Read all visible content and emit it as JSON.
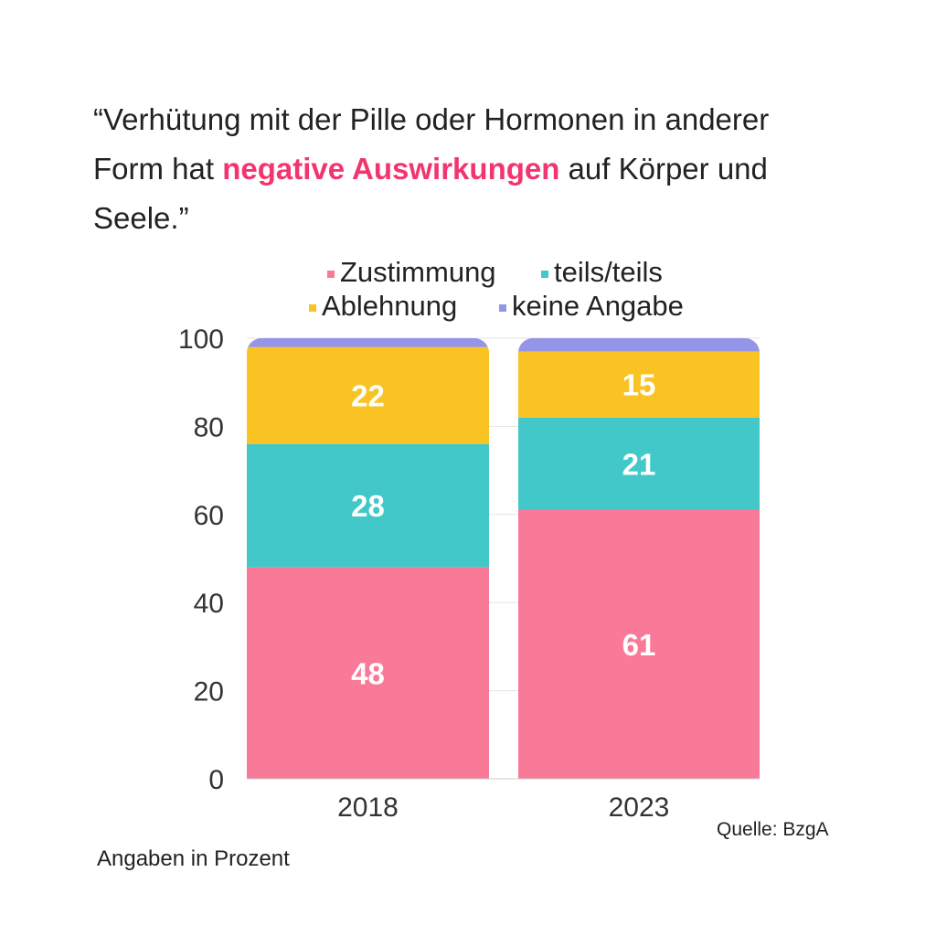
{
  "title": {
    "before": "“Verhütung mit der Pille oder Hormonen in anderer Form hat ",
    "highlight": "negative Auswirkungen",
    "after": " auf Körper und Seele.”",
    "highlight_color": "#F2356D"
  },
  "source": "Quelle: BzgA",
  "note": "Angaben in Prozent",
  "chart_data": {
    "type": "bar",
    "stacked": true,
    "categories": [
      "2018",
      "2023"
    ],
    "series": [
      {
        "name": "Zustimmung",
        "values": [
          48,
          61
        ],
        "color": "#F97A98"
      },
      {
        "name": "teils/teils",
        "values": [
          28,
          21
        ],
        "color": "#43C8C9"
      },
      {
        "name": "Ablehnung",
        "values": [
          22,
          15
        ],
        "color": "#F8C323"
      },
      {
        "name": "keine Angabe",
        "values": [
          2,
          3
        ],
        "color": "#9595E8"
      }
    ],
    "ylim": [
      0,
      100
    ],
    "yticks": [
      0,
      20,
      40,
      60,
      80,
      100
    ],
    "grid": true,
    "legend": "top",
    "data_labels_for": [
      "Zustimmung",
      "teils/teils",
      "Ablehnung"
    ]
  }
}
